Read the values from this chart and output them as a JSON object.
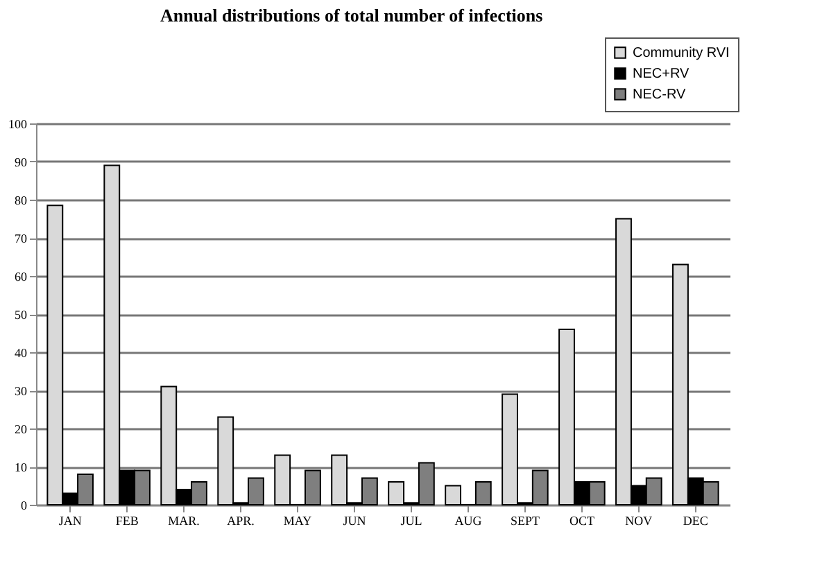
{
  "chart_data": {
    "type": "bar",
    "title": "Annual distributions of total number of infections",
    "categories": [
      "JAN",
      "FEB",
      "MAR.",
      "APR.",
      "MAY",
      "JUN",
      "JUL",
      "AUG",
      "SEPT",
      "OCT",
      "NOV",
      "DEC"
    ],
    "series": [
      {
        "name": "Community RVI",
        "color": "#d9d9d9",
        "values": [
          78.5,
          89,
          31,
          23,
          13,
          13,
          6,
          5,
          29,
          46,
          75,
          63
        ]
      },
      {
        "name": "NEC+RV",
        "color": "#000000",
        "values": [
          3,
          9,
          4,
          0.5,
          0,
          0.5,
          0.5,
          0,
          0.5,
          6,
          5,
          7
        ]
      },
      {
        "name": "NEC-RV",
        "color": "#7f7f7f",
        "values": [
          8,
          9,
          6,
          7,
          9,
          7,
          11,
          6,
          9,
          6,
          7,
          6
        ]
      }
    ],
    "ylim": [
      0,
      100
    ],
    "yticks": [
      0,
      10,
      20,
      30,
      40,
      50,
      60,
      70,
      80,
      90,
      100
    ],
    "grid": "y",
    "legend": "top right"
  }
}
